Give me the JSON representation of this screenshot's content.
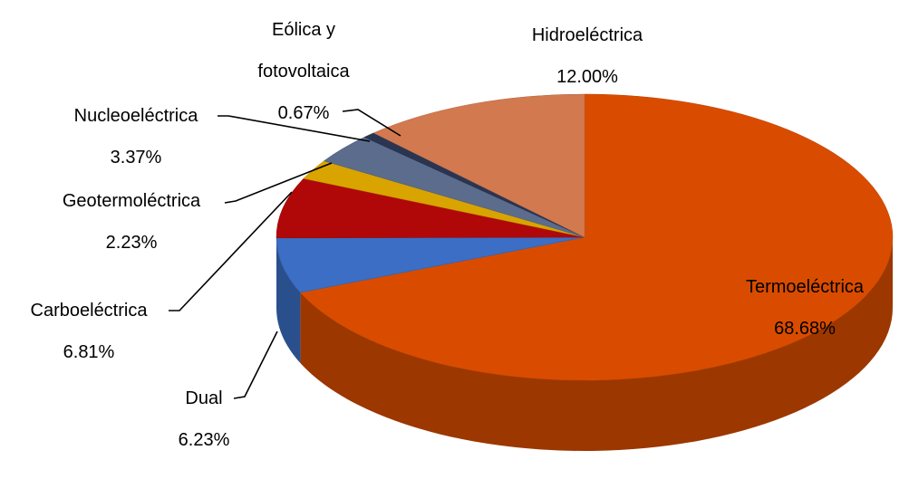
{
  "chart_data": {
    "type": "pie",
    "three_d": true,
    "categories": [
      "Termoeléctrica",
      "Dual",
      "Carboeléctrica",
      "Geotermoléctrica",
      "Nucleoeléctrica",
      "Eólica y fotovoltaica",
      "Hidroeléctrica"
    ],
    "values": [
      68.68,
      6.23,
      6.81,
      2.23,
      3.37,
      0.67,
      12.0
    ],
    "value_labels": [
      "68.68%",
      "6.23%",
      "6.81%",
      "2.23%",
      "3.37%",
      "0.67%",
      "12.00%"
    ],
    "colors": [
      "#d94c00",
      "#3b6ec4",
      "#b00808",
      "#d9a400",
      "#5b6c8c",
      "#2a3552",
      "#d3794f"
    ]
  }
}
